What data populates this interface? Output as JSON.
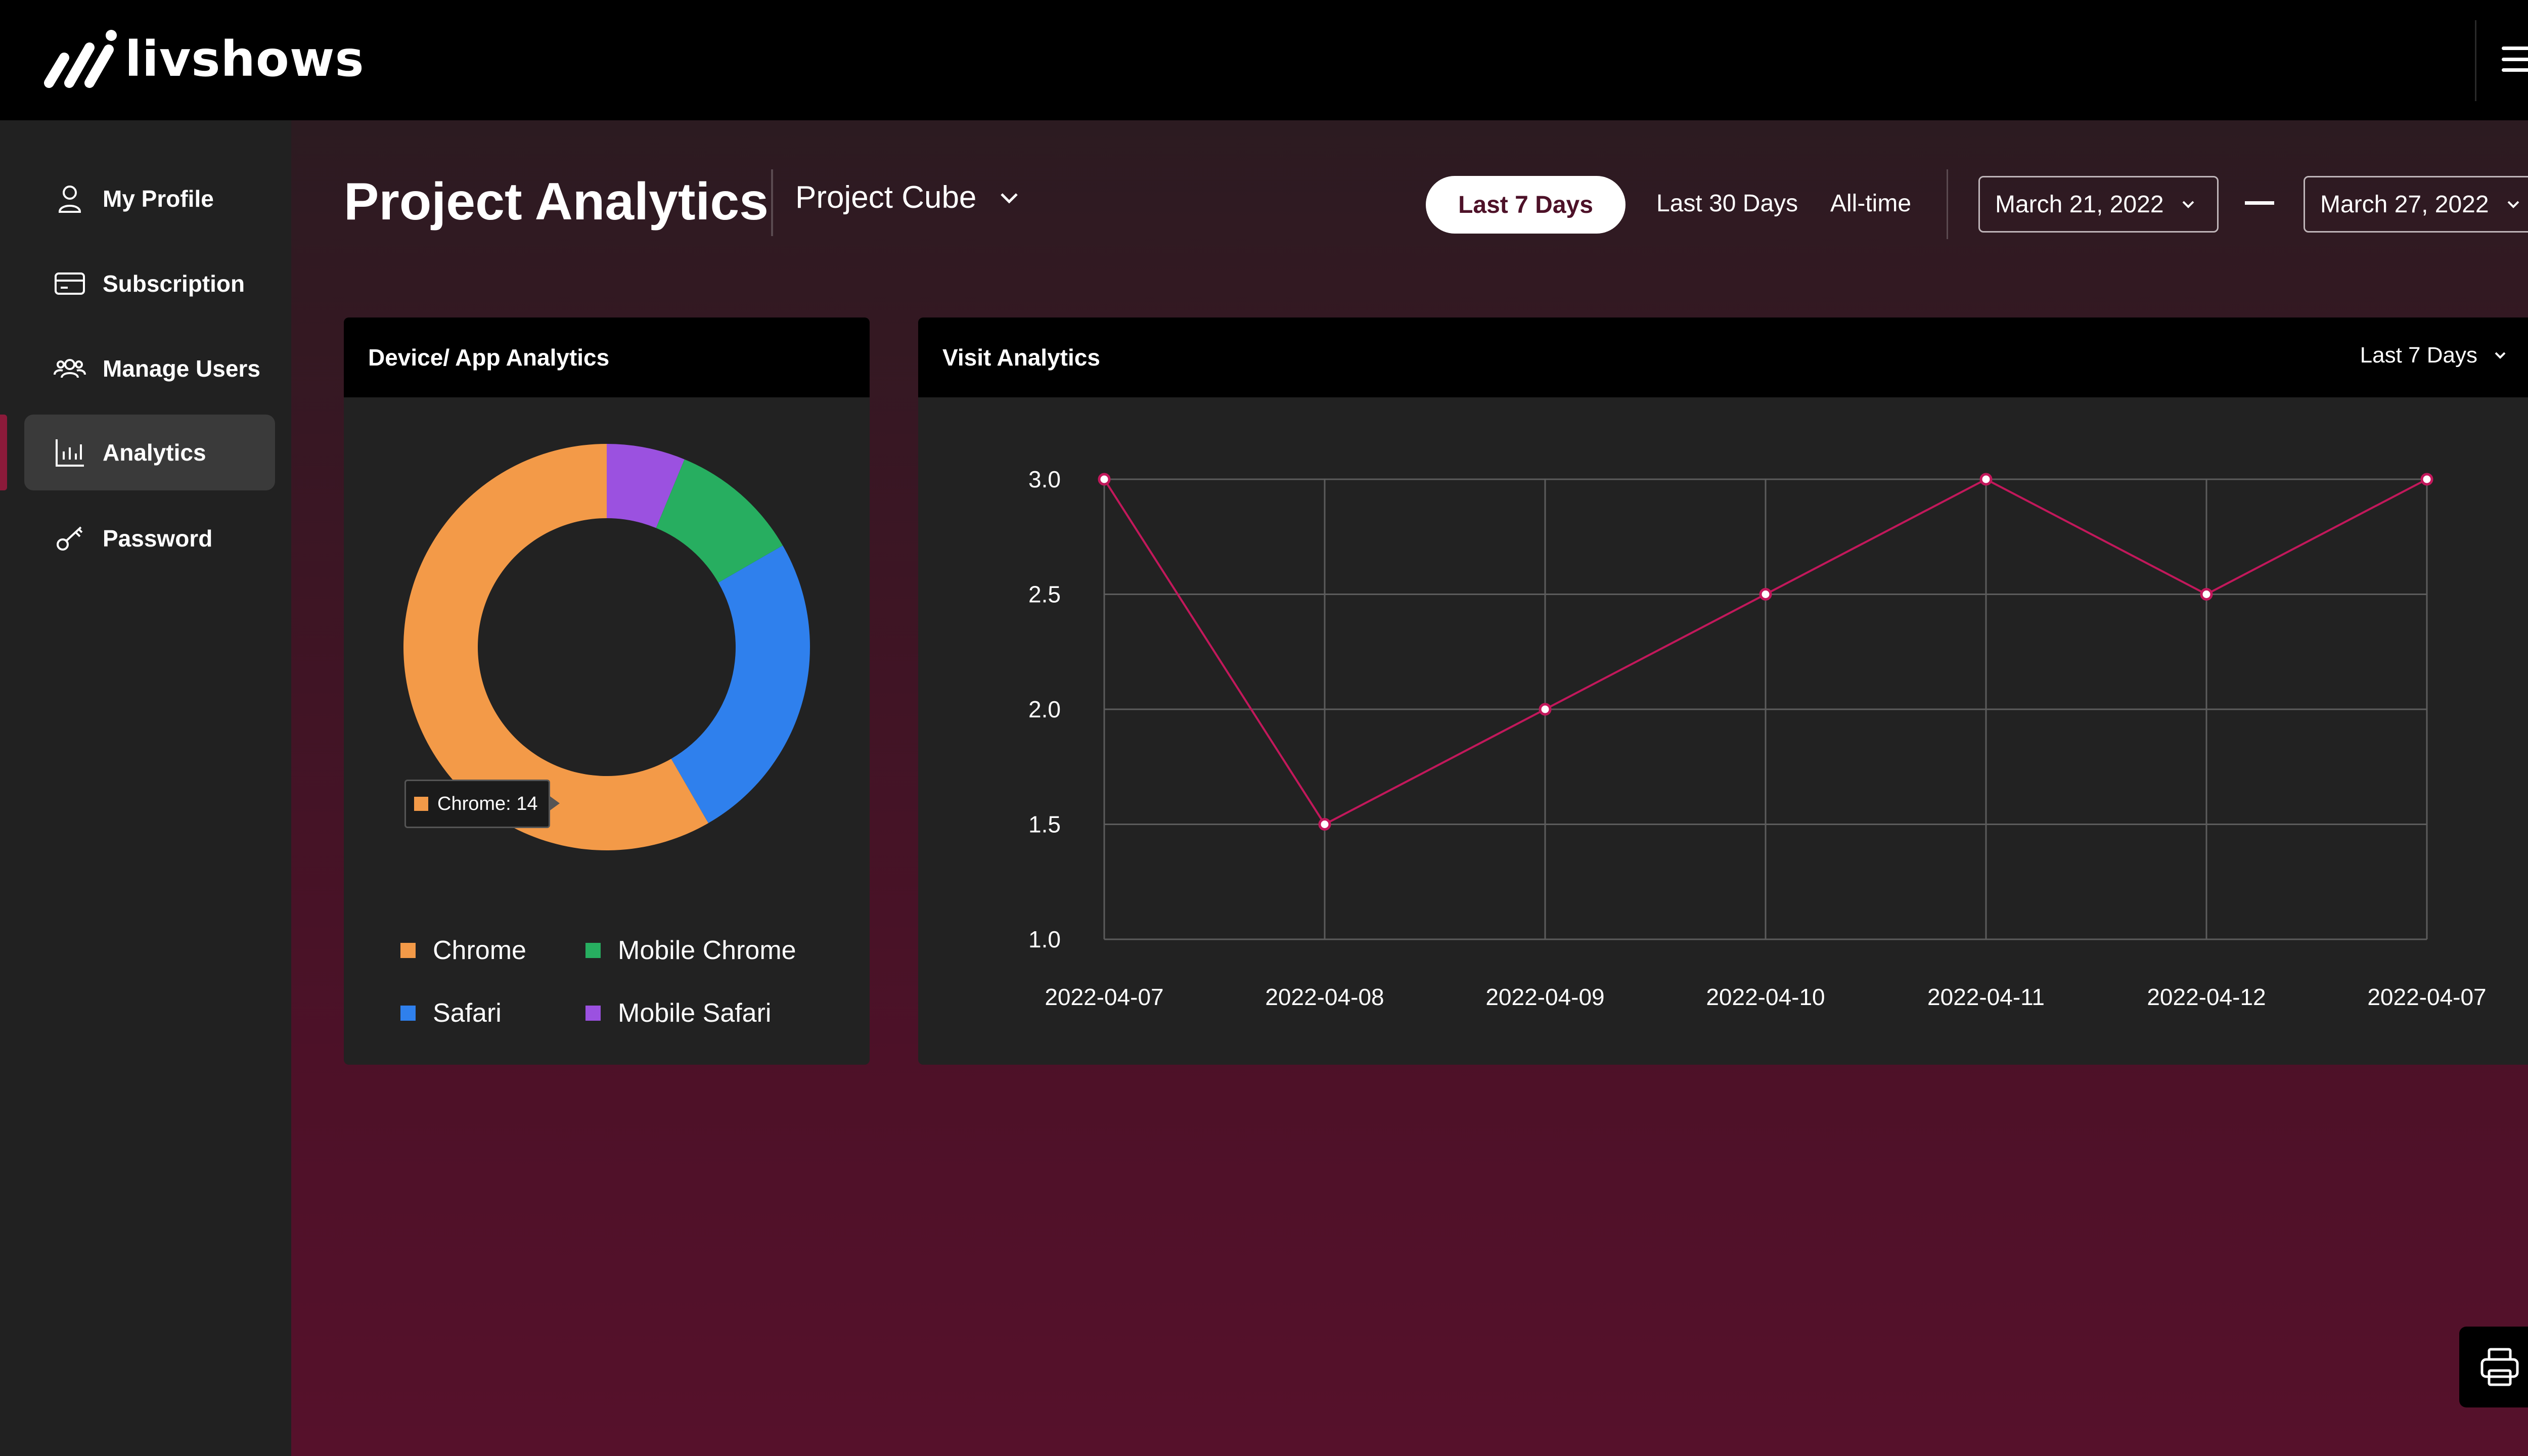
{
  "app": {
    "brand": "livshows"
  },
  "sidebar": {
    "items": [
      {
        "label": "My Profile",
        "icon": "user-icon"
      },
      {
        "label": "Subscription",
        "icon": "card-icon"
      },
      {
        "label": "Manage Users",
        "icon": "users-icon"
      },
      {
        "label": "Analytics",
        "icon": "chart-icon",
        "active": true
      },
      {
        "label": "Password",
        "icon": "key-icon"
      }
    ]
  },
  "header": {
    "title": "Project Analytics",
    "project": "Project Cube",
    "ranges": {
      "active": "Last 7 Days",
      "thirty": "Last 30 Days",
      "all": "All-time"
    },
    "date_from": "March 21, 2022",
    "date_to": "March 27, 2022"
  },
  "device_card": {
    "title": "Device/ App Analytics",
    "tooltip": "Chrome: 14",
    "legend": [
      {
        "label": "Chrome",
        "color": "#f39a48"
      },
      {
        "label": "Mobile Chrome",
        "color": "#27ae60"
      },
      {
        "label": "Safari",
        "color": "#2f80ed"
      },
      {
        "label": "Mobile Safari",
        "color": "#9b51e0"
      }
    ]
  },
  "visit_card": {
    "title": "Visit Analytics",
    "filter": "Last 7 Days"
  },
  "chart_data": [
    {
      "type": "pie",
      "variant": "donut",
      "labels": [
        "Mobile Safari",
        "Mobile Chrome",
        "Safari",
        "Chrome"
      ],
      "values": [
        1.5,
        2.5,
        6,
        14
      ],
      "colors": [
        "#9b51e0",
        "#27ae60",
        "#2f80ed",
        "#f39a48"
      ]
    },
    {
      "type": "line",
      "x": [
        "2022-04-07",
        "2022-04-08",
        "2022-04-09",
        "2022-04-10",
        "2022-04-11",
        "2022-04-12",
        "2022-04-07"
      ],
      "series": [
        {
          "values": [
            3.0,
            1.5,
            2.0,
            2.5,
            3.0,
            2.5,
            3.0
          ],
          "color": "#c2185b"
        }
      ],
      "yticks": [
        "1.0",
        "1.5",
        "2.0",
        "2.5",
        "3.0"
      ],
      "ylim": [
        1.0,
        3.0
      ],
      "grid": true
    }
  ],
  "colors": {
    "accent": "#8b1a3a",
    "line": "#c2185b"
  }
}
